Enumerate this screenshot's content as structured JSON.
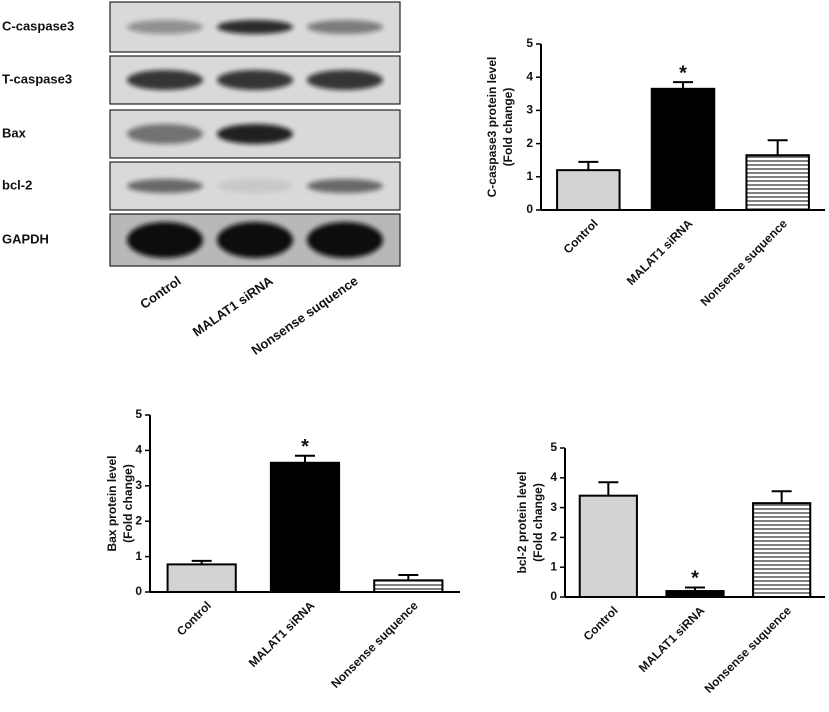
{
  "blot": {
    "rows": [
      "C-caspase3",
      "T-caspase3",
      "Bax",
      "bcl-2",
      "GAPDH"
    ],
    "lanes": [
      "Control",
      "MALAT1 siRNA",
      "Nonsense suquence"
    ]
  },
  "chart_data": [
    {
      "type": "bar",
      "ylabel": [
        "C-caspase3 protein level",
        "(Fold change)"
      ],
      "categories": [
        "Control",
        "MALAT1 siRNA",
        "Nonsense suquence"
      ],
      "values": [
        1.2,
        3.65,
        1.65
      ],
      "errors": [
        0.25,
        0.2,
        0.45
      ],
      "colors": [
        "#d3d3d3",
        "#000000",
        "#ffffff"
      ],
      "hatch": [
        null,
        null,
        "horizontal"
      ],
      "annotations": [
        {
          "category": "MALAT1 siRNA",
          "text": "*"
        }
      ],
      "ylim": [
        0,
        5
      ],
      "yticks": [
        0,
        1,
        2,
        3,
        4,
        5
      ]
    },
    {
      "type": "bar",
      "ylabel": [
        "Bax protein level",
        "(Fold change)"
      ],
      "categories": [
        "Control",
        "MALAT1 siRNA",
        "Nonsense suquence"
      ],
      "values": [
        0.78,
        3.65,
        0.33
      ],
      "errors": [
        0.1,
        0.2,
        0.15
      ],
      "colors": [
        "#d3d3d3",
        "#000000",
        "#ffffff"
      ],
      "hatch": [
        null,
        null,
        "horizontal"
      ],
      "annotations": [
        {
          "category": "MALAT1 siRNA",
          "text": "*"
        }
      ],
      "ylim": [
        0,
        5
      ],
      "yticks": [
        0,
        1,
        2,
        3,
        4,
        5
      ]
    },
    {
      "type": "bar",
      "ylabel": [
        "bcl-2 protein level",
        "(Fold change)"
      ],
      "categories": [
        "Control",
        "MALAT1 siRNA",
        "Nonsense suquence"
      ],
      "values": [
        3.4,
        0.2,
        3.15
      ],
      "errors": [
        0.45,
        0.12,
        0.4
      ],
      "colors": [
        "#d3d3d3",
        "#000000",
        "#ffffff"
      ],
      "hatch": [
        null,
        null,
        "horizontal"
      ],
      "annotations": [
        {
          "category": "MALAT1 siRNA",
          "text": "*"
        }
      ],
      "ylim": [
        0,
        5
      ],
      "yticks": [
        0,
        1,
        2,
        3,
        4,
        5
      ]
    }
  ]
}
